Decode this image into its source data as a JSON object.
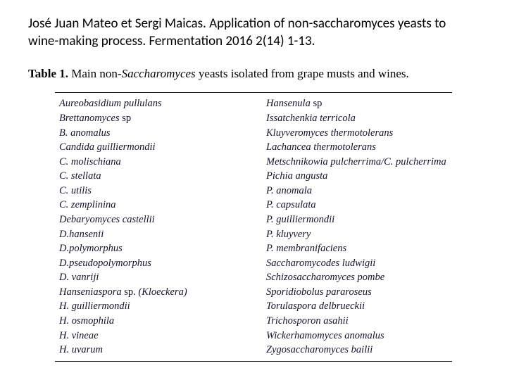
{
  "citation": "José Juan Mateo et Sergi Maicas. Application of non-saccharomyces yeasts to wine-making process. Fermentation 2016 2(14) 1-13.",
  "caption": {
    "label": "Table 1.",
    "prefix": " Main non-",
    "italic": "Saccharomyces",
    "suffix": " yeasts isolated from grape musts and wines."
  },
  "columns": {
    "left": [
      {
        "text": "Aureobasidium pullulans"
      },
      {
        "text": "Brettanomyces ",
        "suffix_roman": "sp"
      },
      {
        "text": "B. anomalus"
      },
      {
        "text": "Candida guilliermondii"
      },
      {
        "text": "C. molischiana"
      },
      {
        "text": "C. stellata"
      },
      {
        "text": "C. utilis"
      },
      {
        "text": "C. zemplinina"
      },
      {
        "text": "Debaryomyces castellii"
      },
      {
        "text": "D.hansenii"
      },
      {
        "text": "D.polymorphus"
      },
      {
        "text": "D.pseudopolymorphus"
      },
      {
        "text": "D. vanriji"
      },
      {
        "text": "Hanseniaspora ",
        "suffix_roman": "sp.",
        "tail_italic": " (Kloeckera)"
      },
      {
        "text": "H. guilliermondii"
      },
      {
        "text": "H. osmophila"
      },
      {
        "text": "H. vineae"
      },
      {
        "text": "H. uvarum"
      }
    ],
    "right": [
      {
        "text": "Hansenula ",
        "suffix_roman": "sp"
      },
      {
        "text": "Issatchenkia terricola"
      },
      {
        "text": "Kluyveromyces thermotolerans"
      },
      {
        "text": "Lachancea thermotolerans"
      },
      {
        "text": "Metschnikowia pulcherrima/C. pulcherrima"
      },
      {
        "text": "Pichia angusta"
      },
      {
        "text": "P. anomala"
      },
      {
        "text": "P. capsulata"
      },
      {
        "text": "P. guilliermondii"
      },
      {
        "text": "P. kluyvery"
      },
      {
        "text": "P. membranifaciens"
      },
      {
        "text": "Saccharomycodes ludwigii"
      },
      {
        "text": "Schizosaccharomyces pombe"
      },
      {
        "text": "Sporidiobolus pararoseus"
      },
      {
        "text": "Torulaspora delbrueckii"
      },
      {
        "text": "Trichosporon asahii"
      },
      {
        "text": "Wickerhamomyces anomalus"
      },
      {
        "text": "Zygosaccharomyces bailii"
      }
    ]
  },
  "style": {
    "citation_color": "#000000",
    "table_text_color": "#13132a",
    "border_color": "#1a1a1a",
    "background": "#ffffff"
  }
}
